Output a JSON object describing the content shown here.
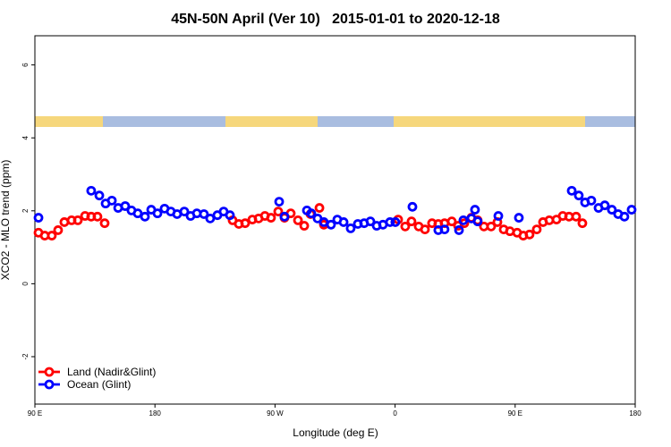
{
  "chart_data": {
    "type": "scatter",
    "title": "45N-50N April (Ver 10)   2015-01-01 to 2020-12-18",
    "xlabel": "Longitude (deg E)",
    "ylabel": "XCO2 - MLO trend (ppm)",
    "xlim": [
      90,
      540
    ],
    "ylim": [
      -3.3,
      6.8
    ],
    "xticks": [
      {
        "value": 90,
        "label": "90 E"
      },
      180,
      {
        "value": 270,
        "label": "90 W"
      },
      {
        "value": 360,
        "label": "0"
      },
      {
        "value": 450,
        "label": "90 E"
      },
      {
        "value": 540,
        "label": "180"
      }
    ],
    "yticks": [
      -2,
      0,
      2,
      4,
      6
    ],
    "legend": "bottomleft",
    "series": [
      {
        "name": "Land (Nadir&Glint)",
        "color": "#ff0000",
        "x": [
          92.7,
          97.4,
          102.7,
          107.4,
          112.1,
          117.5,
          122.2,
          127.6,
          132.2,
          136.9,
          142.3,
          238.2,
          242.9,
          247.6,
          253.0,
          257.7,
          262.4,
          267.0,
          272.4,
          277.1,
          281.8,
          287.2,
          291.9,
          296.6,
          303.3,
          306.6,
          362.3,
          367.6,
          372.3,
          377.7,
          382.4,
          387.7,
          392.4,
          397.1,
          402.5,
          407.2,
          411.9,
          417.2,
          421.9,
          426.6,
          432.0,
          436.7,
          441.4,
          446.1,
          451.5,
          456.1,
          460.8,
          466.2,
          470.9,
          475.6,
          481.0,
          485.7,
          490.4,
          495.7,
          500.4
        ],
        "values": [
          1.4,
          1.32,
          1.32,
          1.47,
          1.69,
          1.74,
          1.74,
          1.86,
          1.84,
          1.84,
          1.66,
          1.74,
          1.64,
          1.66,
          1.76,
          1.79,
          1.86,
          1.81,
          1.98,
          1.81,
          1.93,
          1.74,
          1.59,
          1.91,
          2.08,
          1.62,
          1.76,
          1.57,
          1.71,
          1.57,
          1.49,
          1.66,
          1.64,
          1.66,
          1.71,
          1.59,
          1.66,
          1.81,
          1.74,
          1.57,
          1.57,
          1.69,
          1.49,
          1.44,
          1.4,
          1.32,
          1.35,
          1.49,
          1.69,
          1.74,
          1.76,
          1.86,
          1.84,
          1.84,
          1.66
        ]
      },
      {
        "name": "Ocean (Glint)",
        "color": "#0000ff",
        "x": [
          92.7,
          132.2,
          138.3,
          143.0,
          147.7,
          152.4,
          157.7,
          162.4,
          167.1,
          172.5,
          177.2,
          181.9,
          187.2,
          191.9,
          196.6,
          202.0,
          206.7,
          211.4,
          216.7,
          221.4,
          226.8,
          231.5,
          236.2,
          273.1,
          277.1,
          293.9,
          297.2,
          301.9,
          306.6,
          312.0,
          316.7,
          321.4,
          326.7,
          332.1,
          336.8,
          341.5,
          346.2,
          350.9,
          356.2,
          360.2,
          373.0,
          392.4,
          397.1,
          407.9,
          411.2,
          417.2,
          419.9,
          421.9,
          437.4,
          452.8,
          492.4,
          497.7,
          502.4,
          507.1,
          512.5,
          517.2,
          522.5,
          527.2,
          531.9,
          537.3
        ],
        "values": [
          1.81,
          2.55,
          2.42,
          2.2,
          2.28,
          2.08,
          2.13,
          2.01,
          1.93,
          1.84,
          2.03,
          1.93,
          2.06,
          1.98,
          1.91,
          1.98,
          1.86,
          1.93,
          1.91,
          1.79,
          1.88,
          1.98,
          1.88,
          2.25,
          1.84,
          2.01,
          1.93,
          1.79,
          1.69,
          1.62,
          1.76,
          1.69,
          1.52,
          1.64,
          1.66,
          1.71,
          1.59,
          1.62,
          1.69,
          1.69,
          2.11,
          1.47,
          1.49,
          1.47,
          1.74,
          1.79,
          2.03,
          1.71,
          1.86,
          1.81,
          2.55,
          2.42,
          2.23,
          2.28,
          2.08,
          2.15,
          2.03,
          1.91,
          1.84,
          2.03
        ]
      }
    ]
  }
}
